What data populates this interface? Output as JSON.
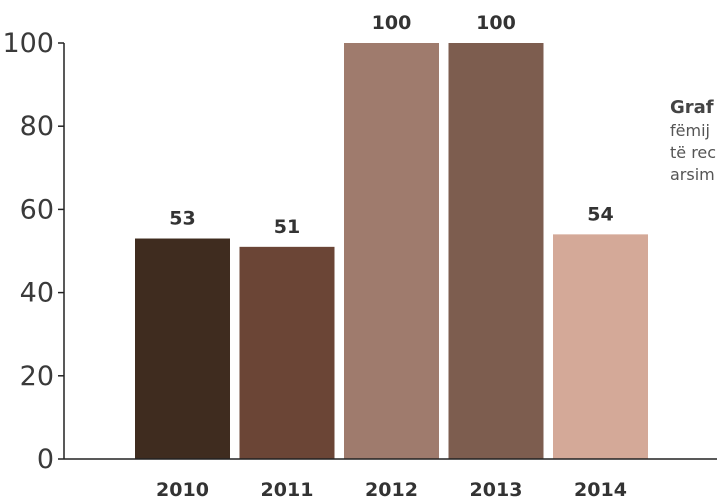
{
  "chart_data": {
    "type": "bar",
    "title": "",
    "xlabel": "",
    "ylabel": "",
    "categories": [
      "2010",
      "2011",
      "2012",
      "2013",
      "2014"
    ],
    "values": [
      53,
      51,
      100,
      100,
      54
    ],
    "data_labels": [
      "53",
      "51",
      "100",
      "100",
      "54"
    ],
    "bar_colors": [
      "#3f2c1f",
      "#6b4536",
      "#9f7b6d",
      "#7d5d4f",
      "#d4a998"
    ],
    "ylim": [
      0,
      100
    ],
    "yticks": [
      0,
      20,
      40,
      60,
      80,
      100
    ],
    "grid": false
  },
  "caption": {
    "title": "Graf",
    "lines": [
      "fëmij",
      "të rec",
      "arsim"
    ]
  }
}
